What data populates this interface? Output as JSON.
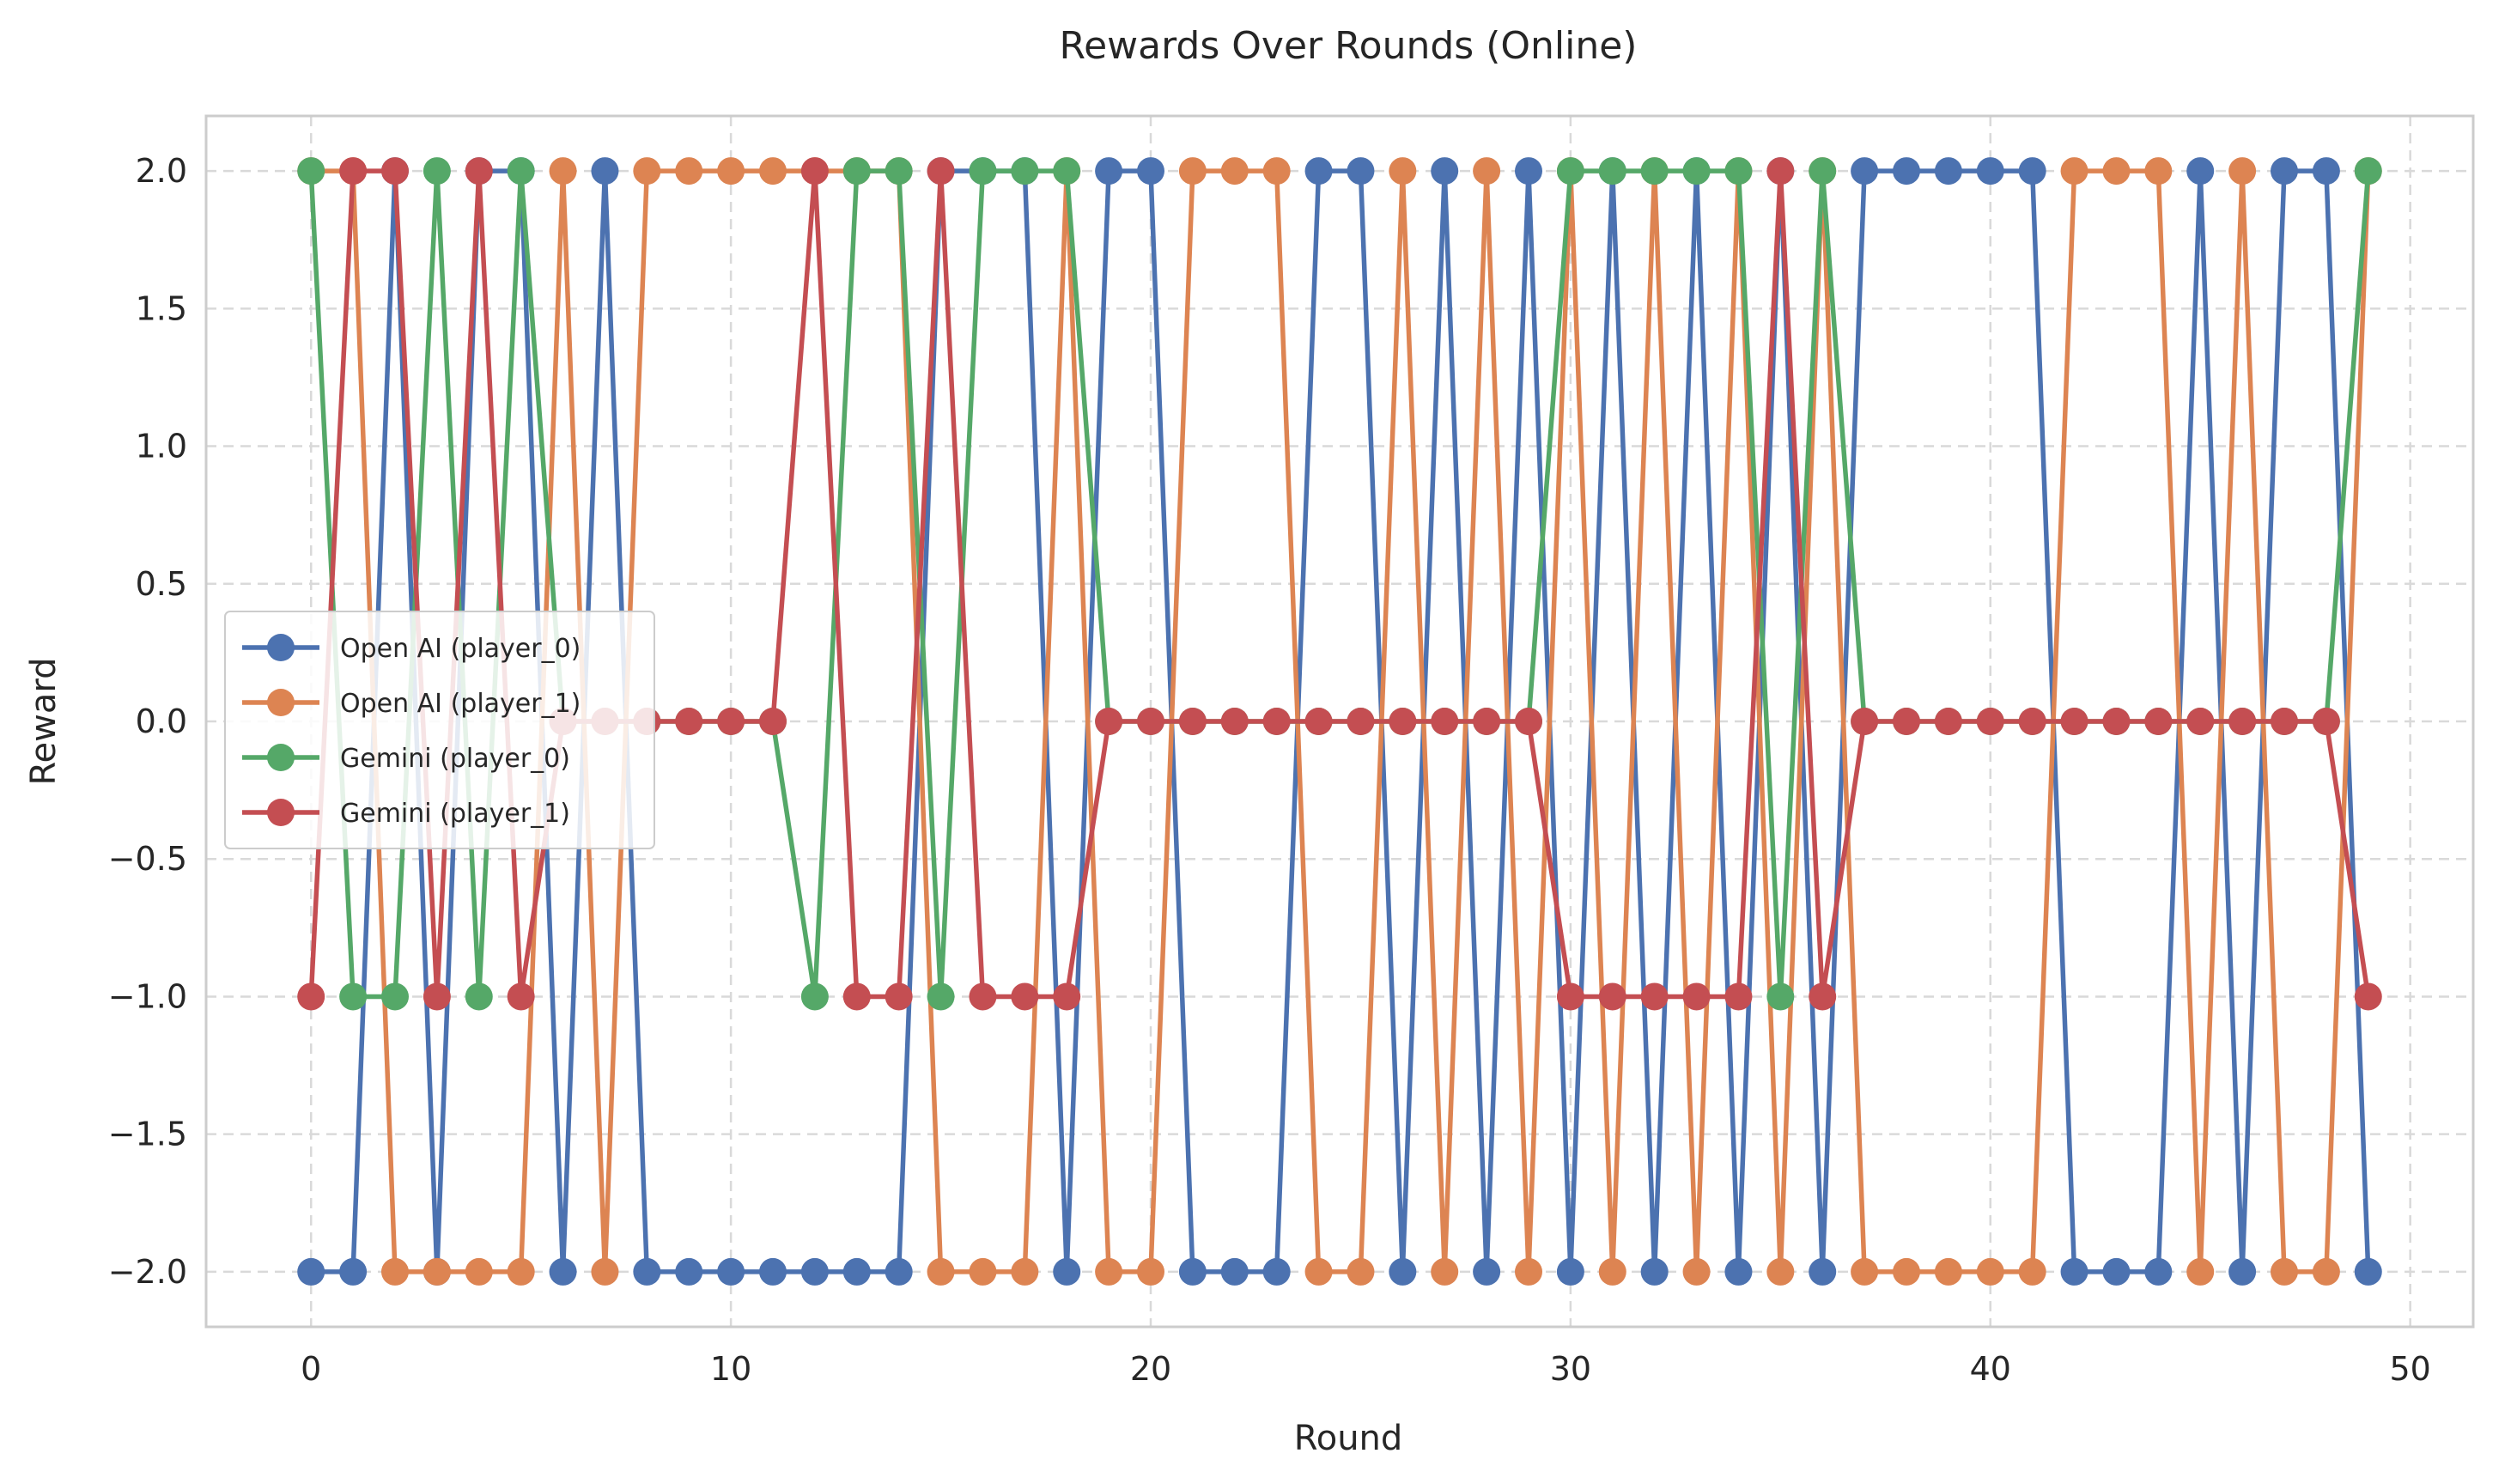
{
  "chart_data": {
    "type": "line",
    "title": "Rewards Over Rounds (Online)",
    "xlabel": "Round",
    "ylabel": "Reward",
    "xlim": [
      -2.5,
      51.5
    ],
    "ylim": [
      -2.2,
      2.2
    ],
    "xticks": [
      0,
      10,
      20,
      30,
      40,
      50
    ],
    "xtick_labels": [
      "0",
      "10",
      "20",
      "30",
      "40",
      "50"
    ],
    "yticks": [
      2.0,
      1.5,
      1.0,
      0.5,
      0.0,
      -0.5,
      -1.0,
      -1.5,
      -2.0
    ],
    "ytick_labels": [
      "2.0",
      "1.5",
      "1.0",
      "0.5",
      "0.0",
      "−0.5",
      "−1.0",
      "−1.5",
      "−2.0"
    ],
    "grid": true,
    "legend_position": "center-left",
    "x": [
      0,
      1,
      2,
      3,
      4,
      5,
      6,
      7,
      8,
      9,
      10,
      11,
      12,
      13,
      14,
      15,
      16,
      17,
      18,
      19,
      20,
      21,
      22,
      23,
      24,
      25,
      26,
      27,
      28,
      29,
      30,
      31,
      32,
      33,
      34,
      35,
      36,
      37,
      38,
      39,
      40,
      41,
      42,
      43,
      44,
      45,
      46,
      47,
      48,
      49
    ],
    "series": [
      {
        "name": "Open AI (player_0)",
        "color": "#4c72b0",
        "values": [
          -2,
          -2,
          2,
          -2,
          2,
          2,
          -2,
          2,
          -2,
          -2,
          -2,
          -2,
          -2,
          -2,
          -2,
          2,
          2,
          2,
          -2,
          2,
          2,
          -2,
          -2,
          -2,
          2,
          2,
          -2,
          2,
          -2,
          2,
          -2,
          2,
          -2,
          2,
          -2,
          2,
          -2,
          2,
          2,
          2,
          2,
          2,
          -2,
          -2,
          -2,
          2,
          -2,
          2,
          2,
          -2
        ]
      },
      {
        "name": "Open AI (player_1)",
        "color": "#dd8452",
        "values": [
          2,
          2,
          -2,
          -2,
          -2,
          -2,
          2,
          -2,
          2,
          2,
          2,
          2,
          2,
          2,
          2,
          -2,
          -2,
          -2,
          2,
          -2,
          -2,
          2,
          2,
          2,
          -2,
          -2,
          2,
          -2,
          2,
          -2,
          2,
          -2,
          2,
          -2,
          2,
          -2,
          2,
          -2,
          -2,
          -2,
          -2,
          -2,
          2,
          2,
          2,
          -2,
          2,
          -2,
          -2,
          2
        ]
      },
      {
        "name": "Gemini (player_0)",
        "color": "#55a868",
        "values": [
          2,
          -1,
          -1,
          2,
          -1,
          2,
          0,
          0,
          0,
          0,
          0,
          0,
          -1,
          2,
          2,
          -1,
          2,
          2,
          2,
          0,
          0,
          0,
          0,
          0,
          0,
          0,
          0,
          0,
          0,
          0,
          2,
          2,
          2,
          2,
          2,
          -1,
          2,
          0,
          0,
          0,
          0,
          0,
          0,
          0,
          0,
          0,
          0,
          0,
          0,
          2
        ]
      },
      {
        "name": "Gemini (player_1)",
        "color": "#c44e52",
        "values": [
          -1,
          2,
          2,
          -1,
          2,
          -1,
          0,
          0,
          0,
          0,
          0,
          0,
          2,
          -1,
          -1,
          2,
          -1,
          -1,
          -1,
          0,
          0,
          0,
          0,
          0,
          0,
          0,
          0,
          0,
          0,
          0,
          -1,
          -1,
          -1,
          -1,
          -1,
          2,
          -1,
          0,
          0,
          0,
          0,
          0,
          0,
          0,
          0,
          0,
          0,
          0,
          0,
          -1
        ]
      }
    ]
  }
}
